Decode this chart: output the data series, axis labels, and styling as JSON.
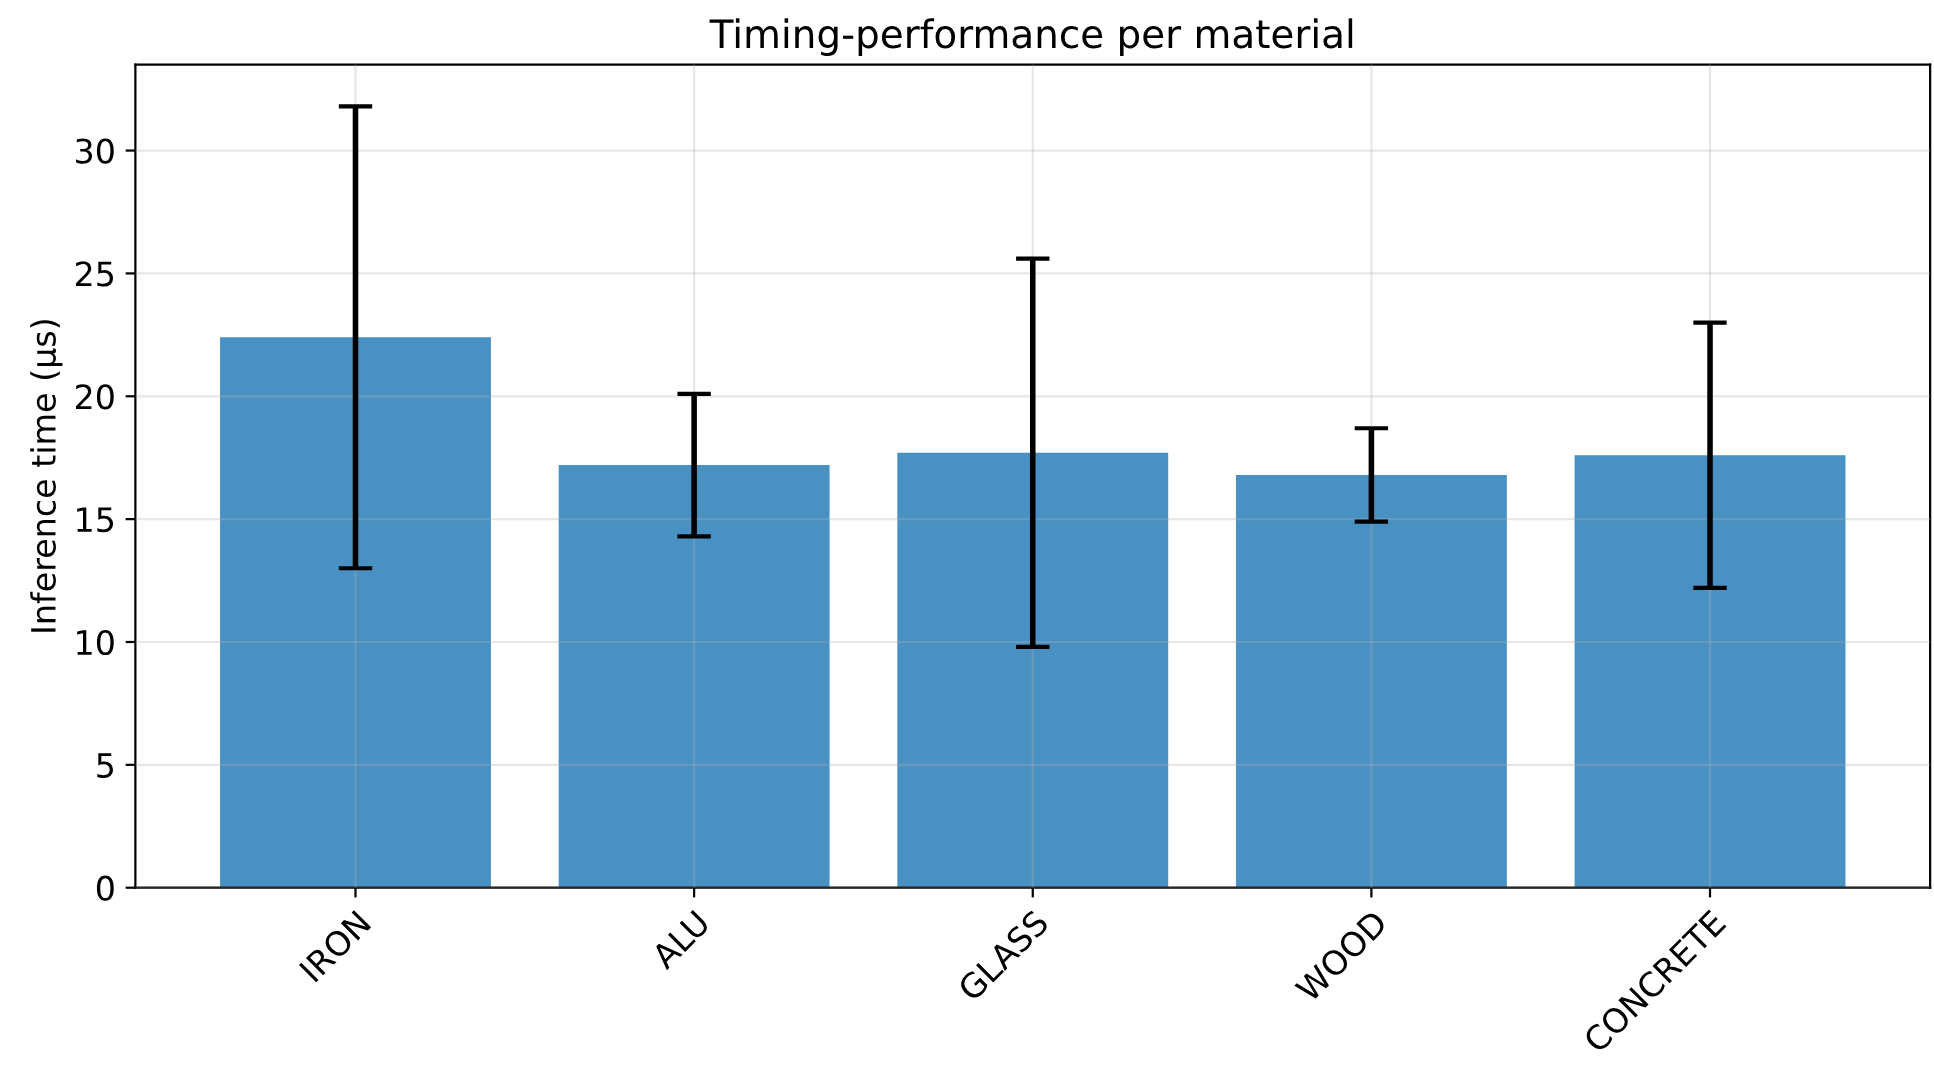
{
  "chart_data": {
    "type": "bar",
    "title": "Timing-performance per material",
    "ylabel": "Inference time (µs)",
    "categories": [
      "IRON",
      "ALU",
      "GLASS",
      "WOOD",
      "CONCRETE"
    ],
    "values": [
      22.4,
      17.2,
      17.7,
      16.8,
      17.6
    ],
    "errors": [
      9.4,
      2.9,
      7.9,
      1.9,
      5.4
    ],
    "color": "#4a91c3",
    "ylim": [
      0,
      33.5
    ],
    "yticks": [
      0,
      5,
      10,
      15,
      20,
      25,
      30
    ],
    "grid": true
  }
}
